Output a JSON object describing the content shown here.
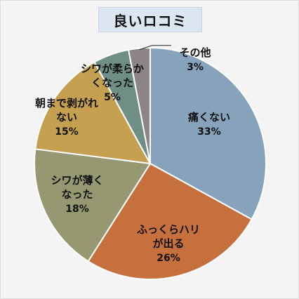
{
  "chart_data": {
    "type": "pie",
    "title": "良いロコミ",
    "slices": [
      {
        "label_lines": [
          "痛くない"
        ],
        "value": 33,
        "pct_text": "33%",
        "color": "#87a3bc"
      },
      {
        "label_lines": [
          "ふっくらハリ",
          "が出る"
        ],
        "value": 26,
        "pct_text": "26%",
        "color": "#c6703d"
      },
      {
        "label_lines": [
          "シワが薄く",
          "なった"
        ],
        "value": 18,
        "pct_text": "18%",
        "color": "#959870"
      },
      {
        "label_lines": [
          "朝まで剥がれ",
          "ない"
        ],
        "value": 15,
        "pct_text": "15%",
        "color": "#c4a050"
      },
      {
        "label_lines": [
          "シワが柔らか",
          "くなった"
        ],
        "value": 5,
        "pct_text": "5%",
        "color": "#6f8f86"
      },
      {
        "label_lines": [
          "その他"
        ],
        "value": 3,
        "pct_text": "3%",
        "color": "#8d8585"
      }
    ]
  }
}
